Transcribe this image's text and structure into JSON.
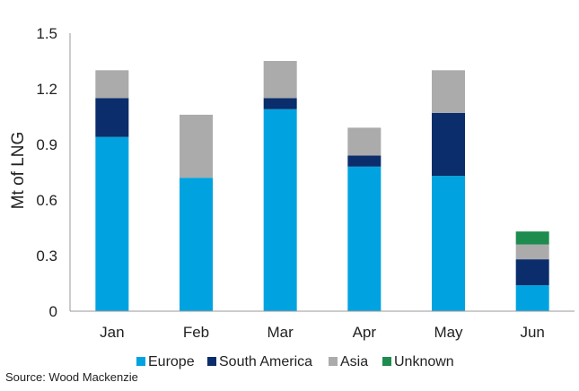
{
  "chart_data": {
    "type": "bar",
    "stacked": true,
    "ylabel": "Mt of LNG",
    "ylim": [
      0,
      1.5
    ],
    "yticks": [
      0,
      0.3,
      0.6,
      0.9,
      1.2,
      1.5
    ],
    "ytick_labels": [
      "0",
      "0.3",
      "0.6",
      "0.9",
      "1.2",
      "1.5"
    ],
    "grid": false,
    "legend_position": "bottom",
    "categories": [
      "Jan",
      "Feb",
      "Mar",
      "Apr",
      "May",
      "Jun"
    ],
    "series": [
      {
        "name": "Europe",
        "color": "#00A3E0",
        "values": [
          0.94,
          0.72,
          1.09,
          0.78,
          0.73,
          0.14
        ]
      },
      {
        "name": "South America",
        "color": "#0B2D6B",
        "values": [
          0.21,
          0.0,
          0.06,
          0.06,
          0.34,
          0.14
        ]
      },
      {
        "name": "Asia",
        "color": "#ABABAB",
        "values": [
          0.15,
          0.34,
          0.2,
          0.15,
          0.23,
          0.08
        ]
      },
      {
        "name": "Unknown",
        "color": "#1E8C4E",
        "values": [
          0,
          0,
          0,
          0,
          0,
          0.07
        ]
      }
    ]
  },
  "source": "Source: Wood Mackenzie"
}
